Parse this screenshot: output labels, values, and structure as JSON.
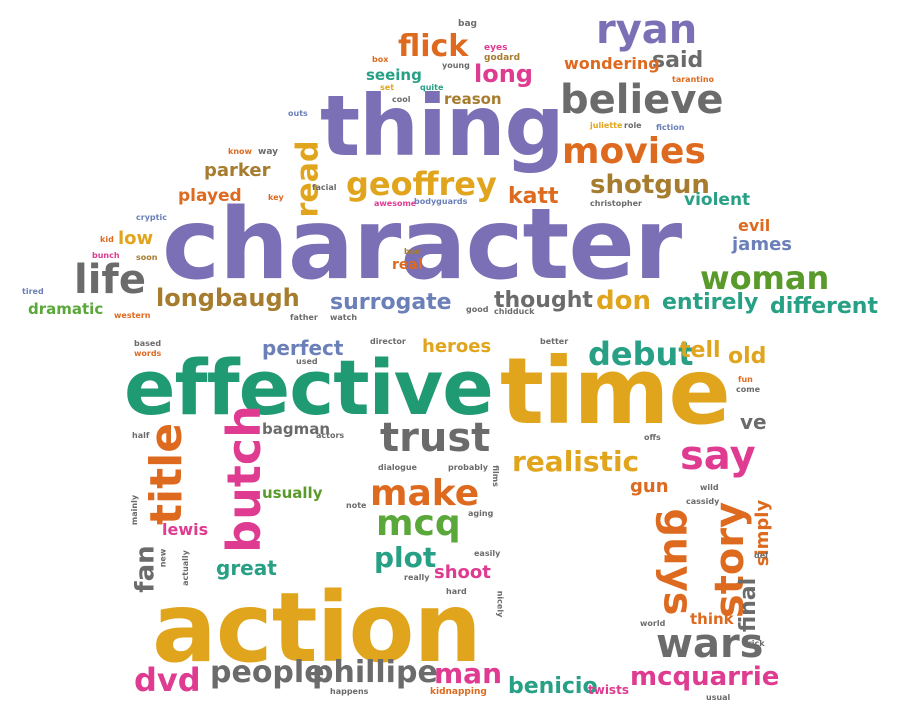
{
  "words": {
    "character": "character",
    "action": "action",
    "time": "time",
    "effective": "effective",
    "thing": "thing",
    "believe": "believe",
    "ryan": "ryan",
    "movies": "movies",
    "geoffrey": "geoffrey",
    "shotgun": "shotgun",
    "woman": "woman",
    "life": "life",
    "longbaugh": "longbaugh",
    "surrogate": "surrogate",
    "thought": "thought",
    "don": "don",
    "entirely": "entirely",
    "different": "different",
    "trust": "trust",
    "say": "say",
    "realistic": "realistic",
    "make": "make",
    "mcq": "mcq",
    "title": "title",
    "butch": "butch",
    "guys": "guys",
    "story": "story",
    "wars": "wars",
    "people": "people",
    "phillipe": "phillipe",
    "dvd": "dvd",
    "man": "man",
    "benicio": "benicio",
    "mcquarrie": "mcquarrie",
    "debut": "debut",
    "tell": "tell",
    "old": "old",
    "flick": "flick",
    "long": "long",
    "said": "said",
    "wondering": "wondering",
    "seeing": "seeing",
    "reason": "reason",
    "read": "read",
    "parker": "parker",
    "played": "played",
    "katt": "katt",
    "violent": "violent",
    "evil": "evil",
    "james": "james",
    "low": "low",
    "dramatic": "dramatic",
    "perfect": "perfect",
    "heroes": "heroes",
    "bagman": "bagman",
    "usually": "usually",
    "plot": "plot",
    "shoot": "shoot",
    "great": "great",
    "fan": "fan",
    "lewis": "lewis",
    "gun": "gun",
    "simply": "simply",
    "final": "final",
    "think": "think",
    "ve": "ve",
    "real": "real",
    "bag": "bag",
    "box": "box",
    "eyes": "eyes",
    "godard": "godard",
    "young": "young",
    "set": "set",
    "quite": "quite",
    "cool": "cool",
    "tarantino": "tarantino",
    "outs": "outs",
    "juliette": "juliette",
    "role": "role",
    "fiction": "fiction",
    "know": "know",
    "way": "way",
    "facial": "facial",
    "key": "key",
    "awesome": "awesome",
    "bodyguards": "bodyguards",
    "christopher": "christopher",
    "cryptic": "cryptic",
    "kid": "kid",
    "bunch": "bunch",
    "soon": "soon",
    "tired": "tired",
    "bad": "bad",
    "western": "western",
    "father": "father",
    "watch": "watch",
    "good": "good",
    "chidduck": "chidduck",
    "based": "based",
    "words": "words",
    "used": "used",
    "director": "director",
    "better": "better",
    "fun": "fun",
    "come": "come",
    "half": "half",
    "actors": "actors",
    "offs": "offs",
    "dialogue": "dialogue",
    "probably": "probably",
    "films": "films",
    "note": "note",
    "aging": "aging",
    "mainly": "mainly",
    "new": "new",
    "actually": "actually",
    "really": "really",
    "easily": "easily",
    "hard": "hard",
    "nicely": "nicely",
    "wild": "wild",
    "cassidy": "cassidy",
    "del": "del",
    "world": "world",
    "trick": "trick",
    "happens": "happens",
    "kidnapping": "kidnapping",
    "twists": "twists",
    "usual": "usual"
  },
  "palette": {
    "purple": "#7b6fb5",
    "green": "#1f9a72",
    "orange": "#dd6a1f",
    "gold": "#e0a51c",
    "pink": "#de3b91",
    "gray": "#6b6b6b",
    "brown": "#a67c2e"
  }
}
